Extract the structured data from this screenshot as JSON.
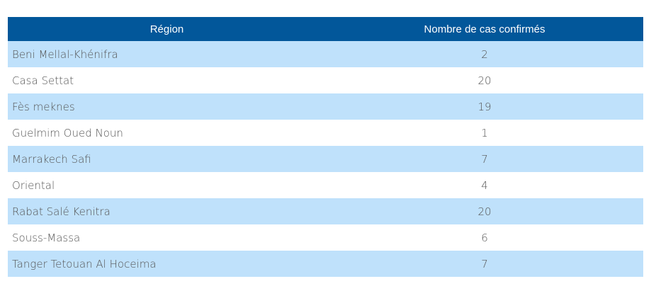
{
  "table": {
    "header": [
      "Région",
      "Nombre de cas confirmés"
    ],
    "rows": [
      [
        "Beni Mellal-Khénifra",
        2
      ],
      [
        "Casa Settat",
        20
      ],
      [
        "Fès meknes",
        19
      ],
      [
        "Guelmim Oued Noun",
        1
      ],
      [
        "Marrakech Safi",
        7
      ],
      [
        "Oriental",
        4
      ],
      [
        "Rabat Salé Kenitra",
        20
      ],
      [
        "Souss-Massa",
        6
      ],
      [
        "Tanger Tetouan Al Hoceima",
        7
      ]
    ]
  }
}
